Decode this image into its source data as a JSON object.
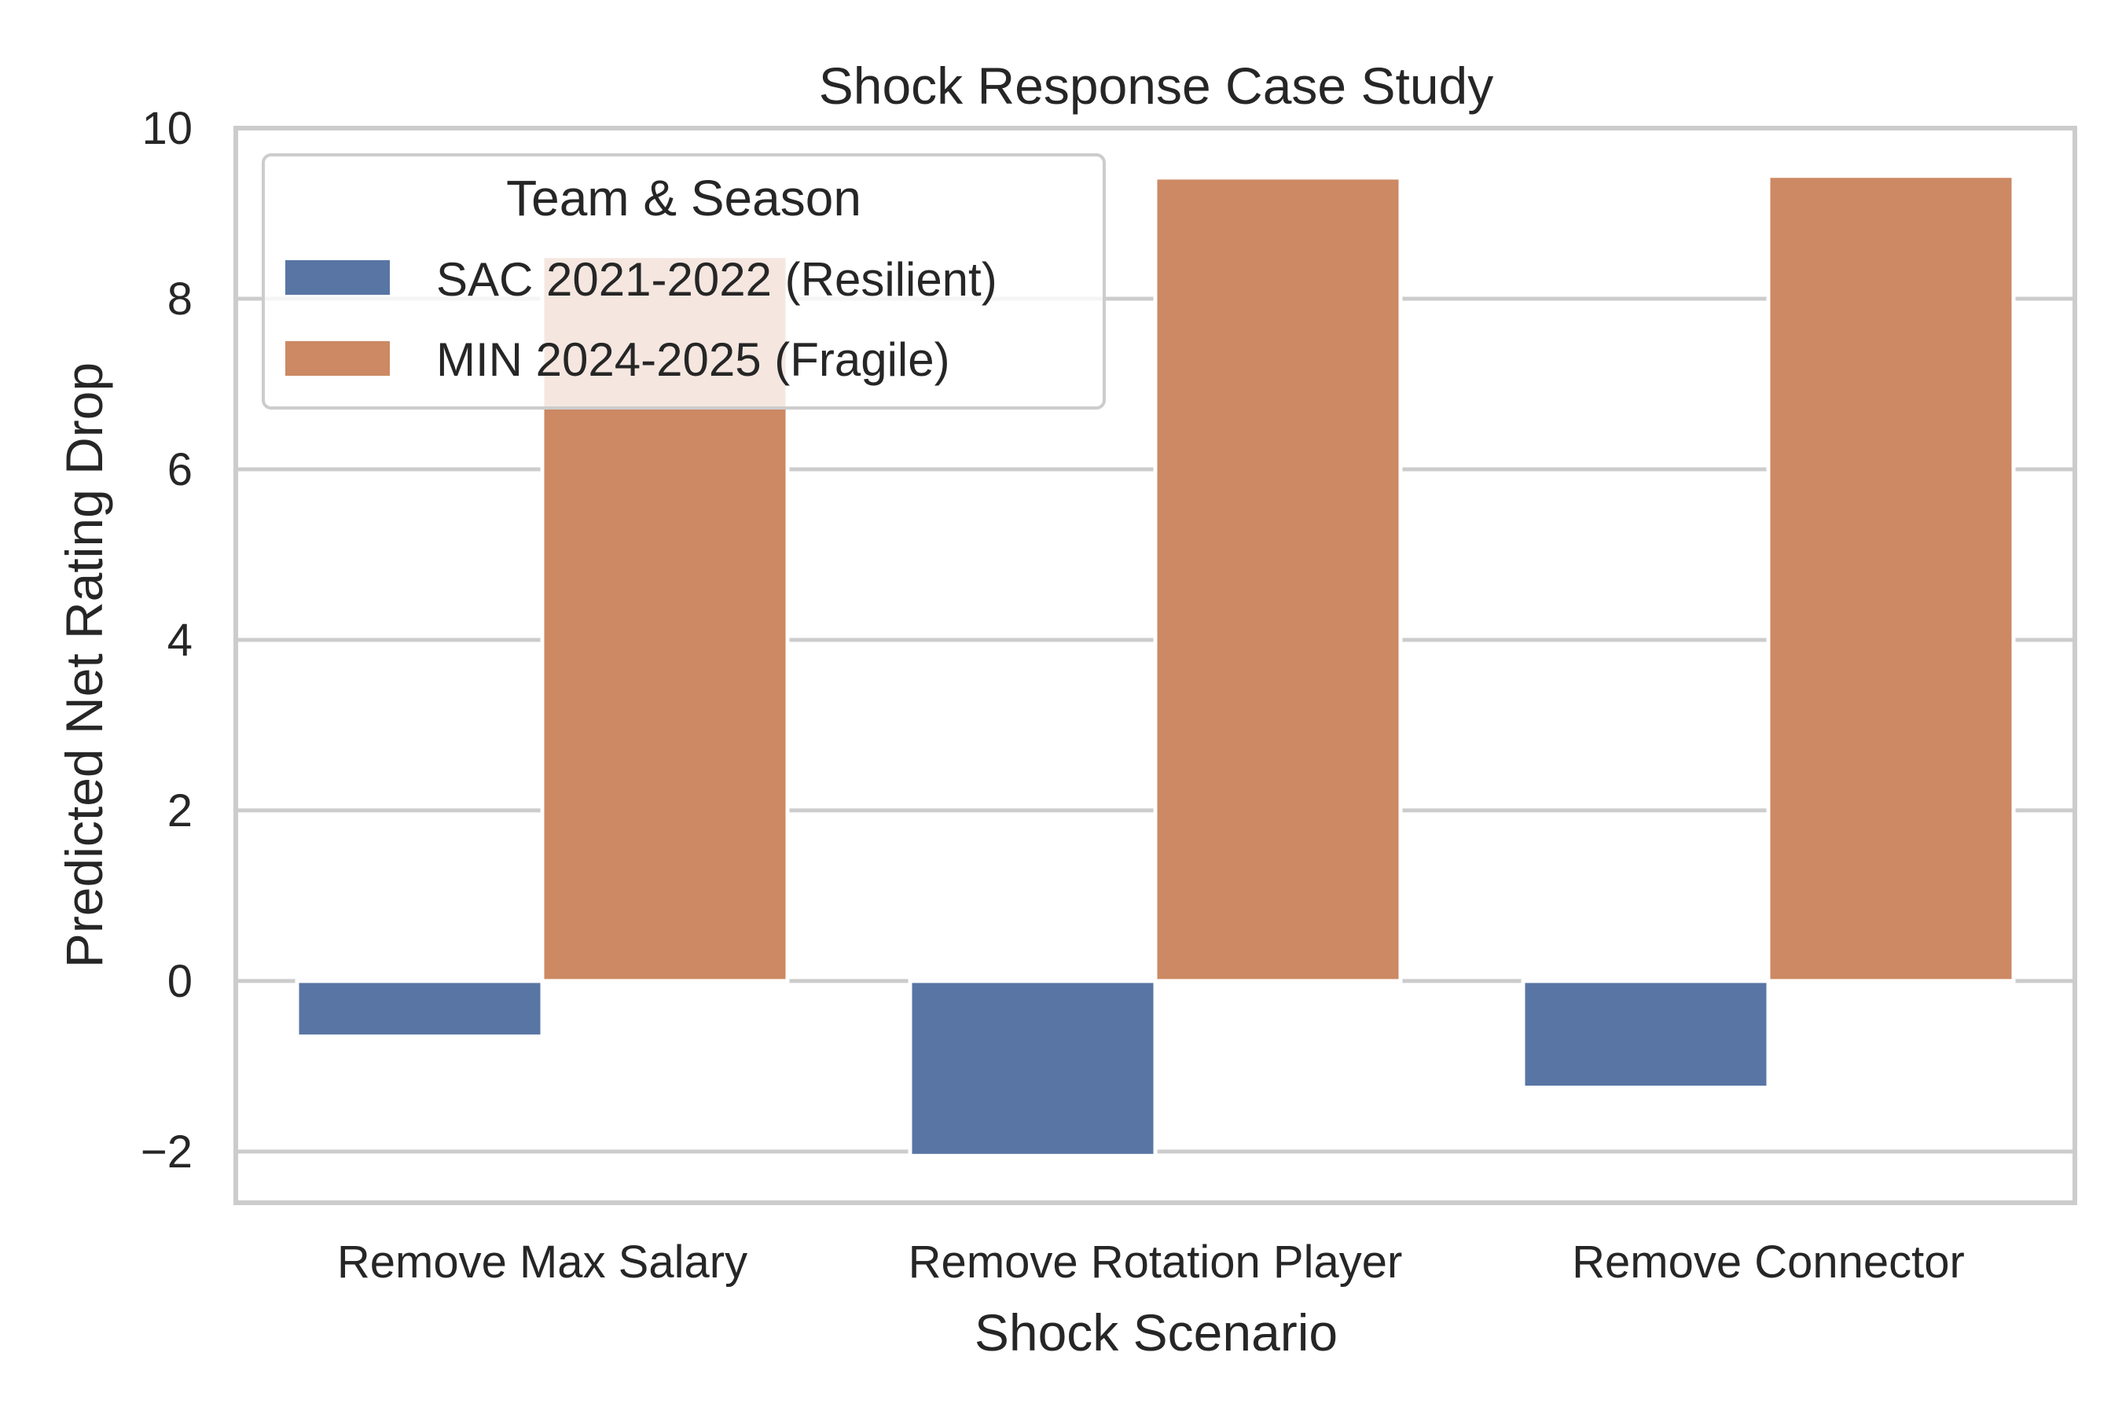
{
  "chart_data": {
    "type": "bar",
    "title": "Shock Response Case Study",
    "xlabel": "Shock Scenario",
    "ylabel": "Predicted Net Rating Drop",
    "categories": [
      "Remove Max Salary",
      "Remove Rotation Player",
      "Remove Connector"
    ],
    "series": [
      {
        "name": "SAC 2021-2022 (Resilient)",
        "color": "#5975a4",
        "values": [
          -0.65,
          -2.05,
          -1.25
        ]
      },
      {
        "name": "MIN 2024-2025 (Fragile)",
        "color": "#cc8963",
        "values": [
          8.5,
          9.42,
          9.44
        ]
      }
    ],
    "ylim": [
      -2.6,
      10
    ],
    "yticks": [
      -2,
      0,
      2,
      4,
      6,
      8,
      10
    ],
    "ytick_labels": [
      "−2",
      "0",
      "2",
      "4",
      "6",
      "8",
      "10"
    ],
    "grid": true,
    "legend": {
      "title": "Team & Season",
      "placement": "top-left"
    }
  }
}
